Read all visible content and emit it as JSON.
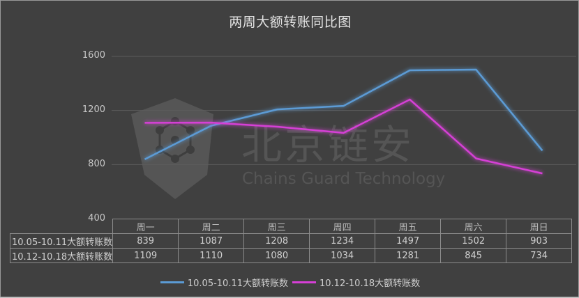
{
  "title": "两周大额转账同比图",
  "watermark": {
    "logo_icon": "hexagon-chain-logo-icon",
    "text_cn": "北京链安",
    "text_en": "Chains Guard Technology"
  },
  "colors": {
    "background": "#404040",
    "series1": "#5b9bd5",
    "series2": "#d63fd6",
    "grid": "#5c5c5c"
  },
  "yaxis": {
    "ticks": [
      "1600",
      "1200",
      "800",
      "400"
    ]
  },
  "table": {
    "headers": [
      "周一",
      "周二",
      "周三",
      "周四",
      "周五",
      "周六",
      "周日"
    ],
    "rows": [
      {
        "label": "10.05-10.11大额转账数",
        "values": [
          "839",
          "1087",
          "1208",
          "1234",
          "1497",
          "1502",
          "903"
        ]
      },
      {
        "label": "10.12-10.18大额转账数",
        "values": [
          "1109",
          "1110",
          "1080",
          "1034",
          "1281",
          "845",
          "734"
        ]
      }
    ]
  },
  "legend": [
    {
      "label": "10.05-10.11大额转账数",
      "color": "#5b9bd5"
    },
    {
      "label": "10.12-10.18大额转账数",
      "color": "#d63fd6"
    }
  ],
  "chart_data": {
    "type": "line",
    "title": "两周大额转账同比图",
    "categories": [
      "周一",
      "周二",
      "周三",
      "周四",
      "周五",
      "周六",
      "周日"
    ],
    "series": [
      {
        "name": "10.05-10.11大额转账数",
        "values": [
          839,
          1087,
          1208,
          1234,
          1497,
          1502,
          903
        ]
      },
      {
        "name": "10.12-10.18大额转账数",
        "values": [
          1109,
          1110,
          1080,
          1034,
          1281,
          845,
          734
        ]
      }
    ],
    "xlabel": "",
    "ylabel": "",
    "ylim": [
      400,
      1600
    ],
    "yticks": [
      400,
      800,
      1200,
      1600
    ],
    "grid": true,
    "legend_position": "bottom",
    "data_table": true
  }
}
